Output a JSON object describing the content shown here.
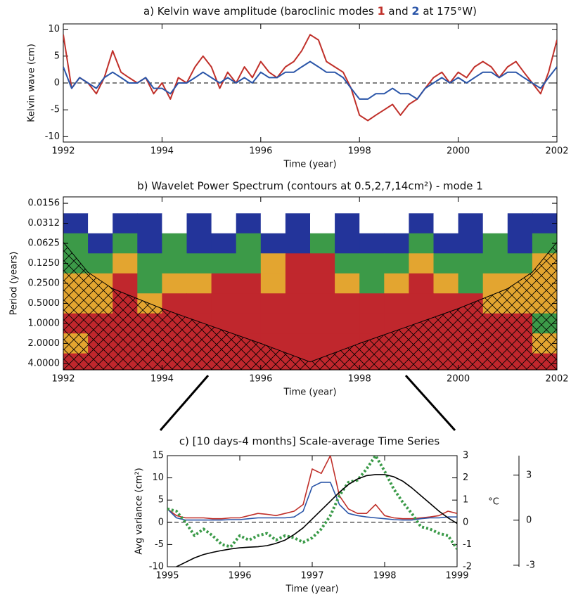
{
  "chart_data": [
    {
      "type": "line",
      "title_parts": [
        "a) Kelvin wave amplitude (baroclinic modes ",
        " and ",
        " at 175°W)"
      ],
      "xlabel": "Time (year)",
      "ylabel": "Kelvin wave (cm)",
      "x": [
        1992,
        1992.17,
        1992.33,
        1992.5,
        1992.67,
        1992.83,
        1993,
        1993.17,
        1993.33,
        1993.5,
        1993.67,
        1993.83,
        1994,
        1994.17,
        1994.33,
        1994.5,
        1994.67,
        1994.83,
        1995,
        1995.17,
        1995.33,
        1995.5,
        1995.67,
        1995.83,
        1996,
        1996.17,
        1996.33,
        1996.5,
        1996.67,
        1996.83,
        1997,
        1997.17,
        1997.33,
        1997.5,
        1997.67,
        1997.83,
        1998,
        1998.17,
        1998.33,
        1998.5,
        1998.67,
        1998.83,
        1999,
        1999.17,
        1999.33,
        1999.5,
        1999.67,
        1999.83,
        2000,
        2000.17,
        2000.33,
        2000.5,
        2000.67,
        2000.83,
        2001,
        2001.17,
        2001.33,
        2001.5,
        2001.67,
        2001.83,
        2002
      ],
      "series": [
        {
          "name": "1",
          "color": "#c0302a",
          "values": [
            9,
            -1,
            1,
            0,
            -2,
            1,
            6,
            2,
            1,
            0,
            1,
            -2,
            0,
            -3,
            1,
            0,
            3,
            5,
            3,
            -1,
            2,
            0,
            3,
            1,
            4,
            2,
            1,
            3,
            4,
            6,
            9,
            8,
            4,
            3,
            2,
            -1,
            -6,
            -7,
            -6,
            -5,
            -4,
            -6,
            -4,
            -3,
            -1,
            1,
            2,
            0,
            2,
            1,
            3,
            4,
            3,
            1,
            3,
            4,
            2,
            0,
            -2,
            2,
            8
          ]
        },
        {
          "name": "2",
          "color": "#2a55a8",
          "values": [
            3,
            -1,
            1,
            0,
            -1,
            1,
            2,
            1,
            0,
            0,
            1,
            -1,
            -1,
            -2,
            0,
            0,
            1,
            2,
            1,
            0,
            1,
            0,
            1,
            0,
            2,
            1,
            1,
            2,
            2,
            3,
            4,
            3,
            2,
            2,
            1,
            -1,
            -3,
            -3,
            -2,
            -2,
            -1,
            -2,
            -2,
            -3,
            -1,
            0,
            1,
            0,
            1,
            0,
            1,
            2,
            2,
            1,
            2,
            2,
            1,
            0,
            -1,
            1,
            3
          ]
        }
      ],
      "xlim": [
        1992,
        2002
      ],
      "xticks": [
        1992,
        1994,
        1996,
        1998,
        2000,
        2002
      ],
      "ylim": [
        -11,
        11
      ],
      "yticks": [
        -10,
        -5,
        0,
        5,
        10
      ],
      "zero_line": true
    },
    {
      "type": "contour",
      "title": "b) Wavelet Power Spectrum (contours at 0.5,2,7,14cm²) - mode 1",
      "xlabel": "Time (year)",
      "ylabel": "Period (years)",
      "times": [
        1992.25,
        1992.75,
        1993.25,
        1993.75,
        1994.25,
        1994.75,
        1995.25,
        1995.75,
        1996.25,
        1996.75,
        1997.25,
        1997.75,
        1998.25,
        1998.75,
        1999.25,
        1999.75,
        2000.25,
        2000.75,
        2001.25,
        2001.75
      ],
      "periods": [
        0.0156,
        0.0312,
        0.0625,
        0.125,
        0.25,
        0.5,
        1,
        2,
        4
      ],
      "power": [
        [
          0.2,
          0.2,
          0.3,
          0.2,
          0.2,
          0.3,
          0.2,
          0.2,
          0.2,
          0.3,
          0.2,
          0.2,
          0.2,
          0.2,
          0.2,
          0.3,
          0.2,
          0.2,
          0.3,
          0.3
        ],
        [
          1,
          0.4,
          1,
          1,
          0.4,
          1,
          0.4,
          1,
          0.3,
          1,
          0.4,
          1,
          0.3,
          0.4,
          1,
          0.4,
          1,
          0.4,
          1,
          1
        ],
        [
          3,
          1,
          2,
          1,
          3,
          1,
          1.5,
          3,
          1,
          1,
          3,
          1,
          1,
          1.5,
          3,
          1,
          1.5,
          3,
          1,
          3
        ],
        [
          5,
          4,
          8,
          3,
          6,
          4,
          5,
          4,
          8,
          15,
          20,
          5,
          3,
          4,
          8,
          5,
          4,
          6,
          5,
          8
        ],
        [
          10,
          8,
          15,
          6,
          10,
          8,
          20,
          16,
          12,
          18,
          25,
          12,
          5,
          8,
          15,
          10,
          6,
          10,
          8,
          12
        ],
        [
          9,
          10,
          20,
          12,
          18,
          20,
          20,
          18,
          20,
          22,
          25,
          20,
          18,
          16,
          20,
          18,
          15,
          10,
          9,
          8
        ],
        [
          20,
          25,
          30,
          25,
          30,
          35,
          40,
          40,
          45,
          45,
          50,
          45,
          40,
          40,
          35,
          30,
          25,
          20,
          15,
          6
        ],
        [
          8,
          20,
          25,
          30,
          35,
          40,
          45,
          50,
          55,
          60,
          60,
          55,
          50,
          45,
          40,
          35,
          25,
          20,
          15,
          8
        ],
        [
          20,
          20,
          20,
          25,
          30,
          35,
          40,
          45,
          50,
          50,
          50,
          50,
          45,
          40,
          35,
          30,
          25,
          20,
          20,
          20
        ]
      ],
      "levels": [
        0.5,
        2,
        7,
        14
      ],
      "level_colors": [
        "#ffffff",
        "#23349a",
        "#3c9a48",
        "#e3a530",
        "#c0272d"
      ],
      "coi": {
        "x": [
          1992,
          1992.5,
          1993,
          1994,
          1995,
          1996,
          1997,
          1998,
          1999,
          2000,
          2001,
          2001.5,
          2002
        ],
        "period": [
          0.06,
          0.17,
          0.3,
          0.6,
          1.1,
          2,
          3.8,
          2,
          1.1,
          0.6,
          0.3,
          0.17,
          0.06
        ]
      },
      "xlim": [
        1992,
        2002
      ],
      "xticks": [
        1992,
        1994,
        1996,
        1998,
        2000,
        2002
      ],
      "ylim": [
        0.0125,
        5
      ],
      "ylog": true,
      "yinvert": true,
      "yticks": [
        {
          "value": 0.0156,
          "label": "0.0156"
        },
        {
          "value": 0.0312,
          "label": "0.0312"
        },
        {
          "value": 0.0625,
          "label": "0.0625"
        },
        {
          "value": 0.125,
          "label": "0.1250"
        },
        {
          "value": 0.25,
          "label": "0.2500"
        },
        {
          "value": 0.5,
          "label": "0.5000"
        },
        {
          "value": 1,
          "label": "1.0000"
        },
        {
          "value": 2,
          "label": "2.0000"
        },
        {
          "value": 4,
          "label": "4.0000"
        }
      ]
    },
    {
      "type": "line",
      "title": "c) [10 days-4 months] Scale-average Time Series",
      "xlabel": "Time (year)",
      "ylabel": "Avg variance (cm²)",
      "y3label": "°C",
      "x": [
        1995,
        1995.125,
        1995.25,
        1995.375,
        1995.5,
        1995.625,
        1995.75,
        1995.875,
        1996,
        1996.125,
        1996.25,
        1996.375,
        1996.5,
        1996.625,
        1996.75,
        1996.875,
        1997,
        1997.125,
        1997.25,
        1997.375,
        1997.5,
        1997.625,
        1997.75,
        1997.875,
        1998,
        1998.125,
        1998.25,
        1998.375,
        1998.5,
        1998.625,
        1998.75,
        1998.875,
        1999
      ],
      "series": [
        {
          "color": "#c0302a",
          "values": [
            3,
            1.5,
            1,
            1,
            1,
            0.8,
            0.8,
            1,
            1,
            1.5,
            2,
            1.8,
            1.5,
            2,
            2.5,
            4,
            12,
            11,
            15,
            6,
            3,
            2,
            2,
            4,
            1.5,
            1,
            0.8,
            0.8,
            1,
            1.2,
            1.5,
            2.5,
            2
          ]
        },
        {
          "color": "#2a55a8",
          "values": [
            3,
            1,
            0.5,
            0.5,
            0.5,
            0.5,
            0.5,
            0.6,
            0.6,
            0.8,
            1,
            1,
            1,
            1,
            1.2,
            2.5,
            8,
            9,
            9,
            4,
            2,
            1.5,
            1.2,
            1,
            0.8,
            0.6,
            0.5,
            0.5,
            0.8,
            1,
            1,
            1.2,
            1.2
          ]
        },
        {
          "color": "#3a9a48",
          "axis": "y2",
          "dash": true,
          "values": [
            0.6,
            0.5,
            0,
            -0.6,
            -0.3,
            -0.6,
            -1,
            -1.1,
            -0.6,
            -0.8,
            -0.6,
            -0.5,
            -0.8,
            -0.6,
            -0.7,
            -0.9,
            -0.7,
            -0.3,
            0.3,
            1.2,
            1.8,
            1.9,
            2.4,
            3,
            2.3,
            1.5,
            0.9,
            0.4,
            -0.2,
            -0.3,
            -0.5,
            -0.6,
            -1.2
          ]
        },
        {
          "color": "#000000",
          "axis": "y2",
          "values": [
            null,
            -2,
            -1.8,
            -1.6,
            -1.45,
            -1.35,
            -1.27,
            -1.2,
            -1.15,
            -1.12,
            -1.1,
            -1.05,
            -0.95,
            -0.8,
            -0.55,
            -0.25,
            0.15,
            0.55,
            0.95,
            1.35,
            1.7,
            1.95,
            2.1,
            2.15,
            2.15,
            2.05,
            1.85,
            1.55,
            1.2,
            0.85,
            0.5,
            0.2,
            -0.05
          ]
        }
      ],
      "xlim": [
        1995,
        1999
      ],
      "xticks": [
        1995,
        1996,
        1997,
        1998,
        1999
      ],
      "ylim": [
        -10,
        15
      ],
      "yticks": [
        -10,
        -5,
        0,
        5,
        10,
        15
      ],
      "y2lim": [
        -2,
        3
      ],
      "y2ticks": [
        -2,
        -1,
        0,
        1,
        2,
        3
      ],
      "y3lim": [
        -3.1,
        4.3
      ],
      "y3ticks": [
        -3,
        0,
        3
      ],
      "zero_line": true
    }
  ]
}
